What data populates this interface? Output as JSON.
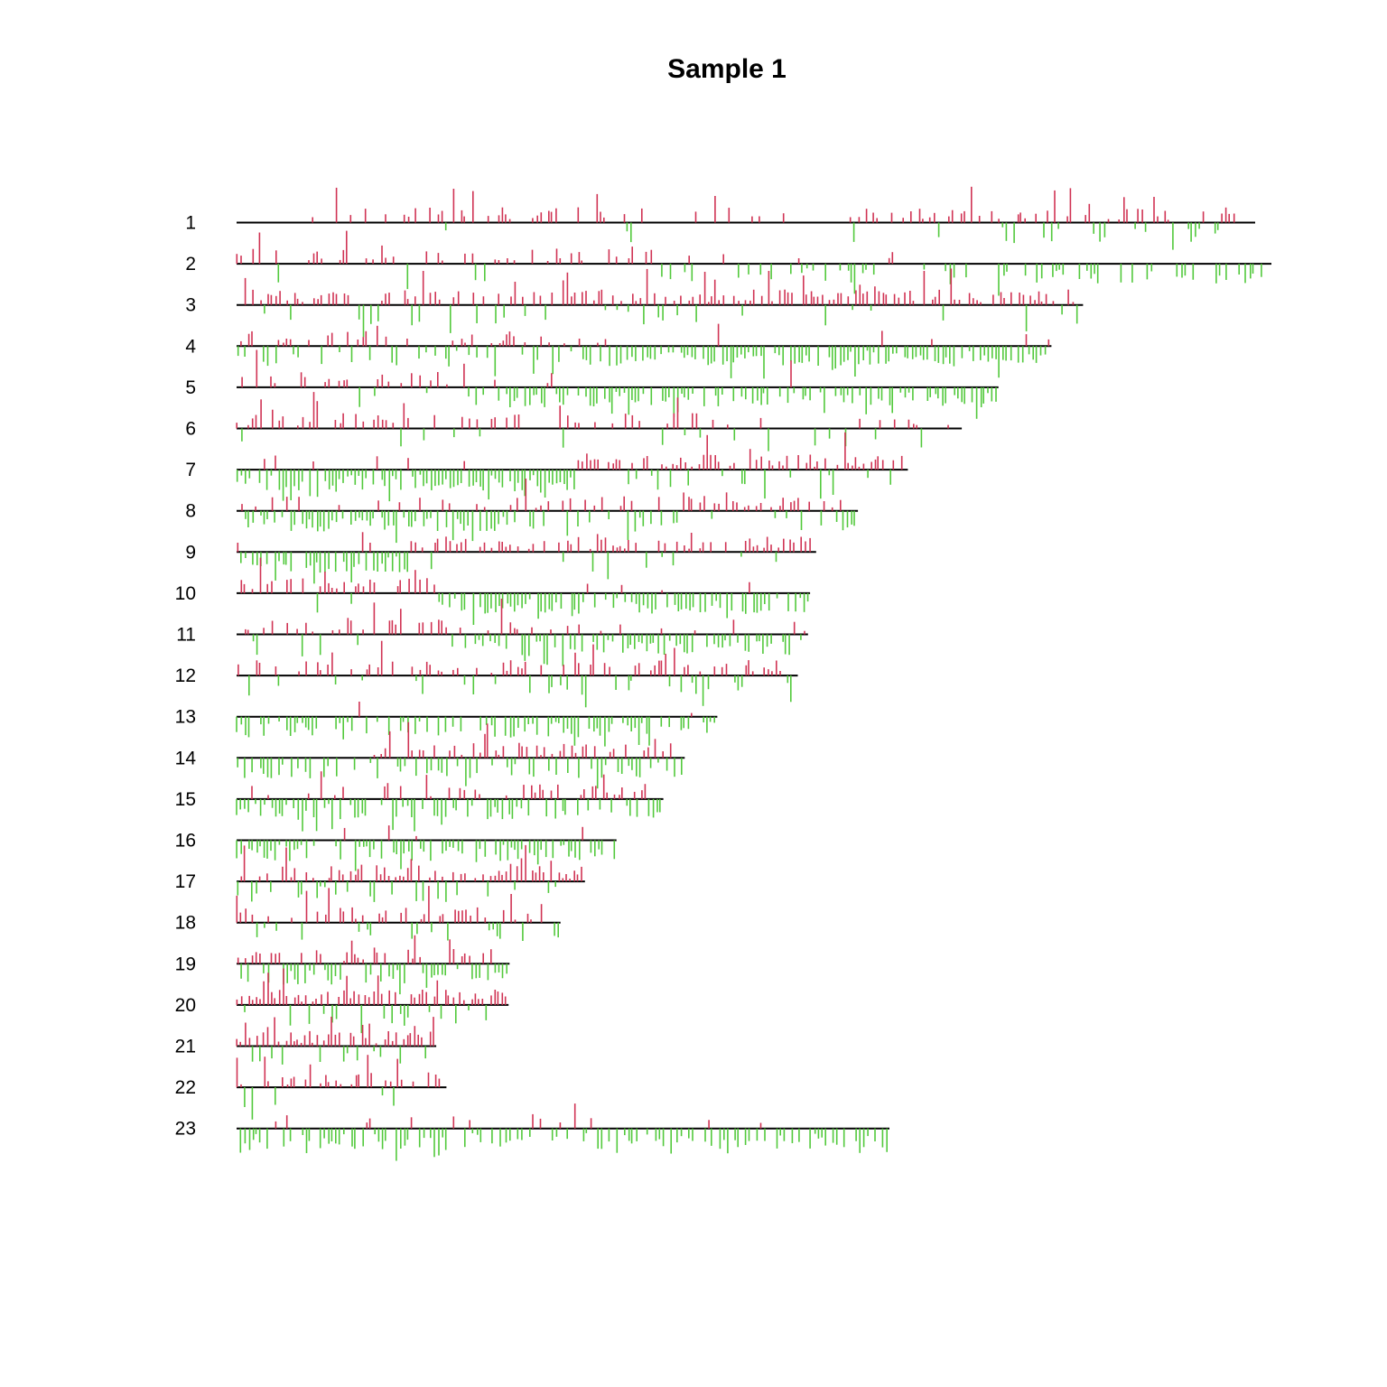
{
  "chart_data": {
    "type": "genome-wide copy number plot",
    "title": "Sample 1",
    "gain_color": "#d03354",
    "loss_color": "#52c93c",
    "baseline_color": "#000000",
    "chromosomes": [
      {
        "label": "1",
        "length": 1.0
      },
      {
        "label": "2",
        "length": 1.016
      },
      {
        "label": "3",
        "length": 0.831
      },
      {
        "label": "4",
        "length": 0.8
      },
      {
        "label": "5",
        "length": 0.748
      },
      {
        "label": "6",
        "length": 0.712
      },
      {
        "label": "7",
        "length": 0.659
      },
      {
        "label": "8",
        "length": 0.61
      },
      {
        "label": "9",
        "length": 0.569
      },
      {
        "label": "10",
        "length": 0.563
      },
      {
        "label": "11",
        "length": 0.561
      },
      {
        "label": "12",
        "length": 0.551
      },
      {
        "label": "13",
        "length": 0.472
      },
      {
        "label": "14",
        "length": 0.44
      },
      {
        "label": "15",
        "length": 0.419
      },
      {
        "label": "16",
        "length": 0.373
      },
      {
        "label": "17",
        "length": 0.342
      },
      {
        "label": "18",
        "length": 0.318
      },
      {
        "label": "19",
        "length": 0.268
      },
      {
        "label": "20",
        "length": 0.267
      },
      {
        "label": "21",
        "length": 0.196
      },
      {
        "label": "22",
        "length": 0.206
      },
      {
        "label": "23",
        "length": 0.641
      }
    ]
  }
}
